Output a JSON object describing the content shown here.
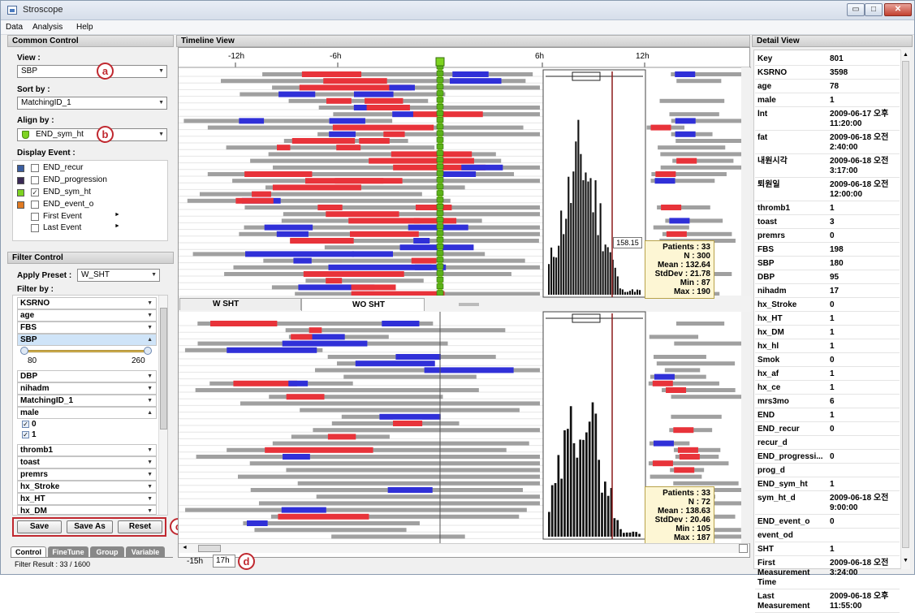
{
  "window": {
    "title": "Stroscope",
    "btn_min": "▭",
    "btn_max": "□",
    "btn_close": "✕"
  },
  "menu": [
    "Data",
    "Analysis",
    "Help"
  ],
  "common_control": {
    "header": "Common Control",
    "view_label": "View :",
    "view_value": "SBP",
    "sort_label": "Sort by :",
    "sort_value": "MatchingID_1",
    "align_label": "Align by :",
    "align_value": "END_sym_ht",
    "display_label": "Display Event :",
    "events": [
      {
        "label": "END_recur",
        "color": "#3b5ea0",
        "checked": false
      },
      {
        "label": "END_progression",
        "color": "#3a2a55",
        "checked": false
      },
      {
        "label": "END_sym_ht",
        "color": "#7ed321",
        "checked": true
      },
      {
        "label": "END_event_o",
        "color": "#e07a22",
        "checked": false
      },
      {
        "label": "First Event",
        "color": "",
        "checked": false,
        "arrow": "►"
      },
      {
        "label": "Last Event",
        "color": "",
        "checked": false,
        "arrow": "►"
      }
    ],
    "callout_a": "a",
    "callout_b": "b",
    "callout_c": "c",
    "callout_d": "d"
  },
  "filter_control": {
    "header": "Filter Control",
    "preset_label": "Apply Preset :",
    "preset_value": "W_SHT",
    "filter_label": "Filter by :",
    "rows_top": [
      "KSRNO",
      "age",
      "FBS",
      "SBP"
    ],
    "sbp_range": {
      "min_label": "80",
      "max_label": "260"
    },
    "rows_mid": [
      "DBP",
      "nihadm",
      "MatchingID_1",
      "male"
    ],
    "male_options": [
      "0",
      "1"
    ],
    "rows_bottom": [
      "thromb1",
      "toast",
      "premrs",
      "hx_Stroke",
      "hx_HT",
      "hx_DM"
    ],
    "buttons": {
      "save": "Save",
      "save_as": "Save As",
      "reset": "Reset"
    },
    "tabs": [
      "Control",
      "FineTune",
      "Group",
      "Variable"
    ],
    "result": "Filter Result : 33 / 1600"
  },
  "timeline": {
    "header": "Timeline View",
    "ticks": [
      "-12h",
      "-6h",
      "6h",
      "12h"
    ],
    "tabs": [
      "W SHT",
      "WO SHT"
    ],
    "cursor_value": "158.15",
    "range_start": "-15h",
    "range_end": "17h",
    "stats_top": {
      "patients": "Patients : 33",
      "n": "N : 300",
      "mean": "Mean : 132.64",
      "std": "StdDev : 21.78",
      "min": "Min : 87",
      "max": "Max : 190"
    },
    "stats_bottom": {
      "patients": "Patients : 33",
      "n": "N : 72",
      "mean": "Mean : 138.63",
      "std": "StdDev : 20.46",
      "min": "Min : 105",
      "max": "Max : 187"
    },
    "colors": {
      "high": "#e8333a",
      "low": "#3030d8",
      "mid": "#a0a0a0",
      "align": "#7ed321",
      "marker": "#8b1a1a"
    }
  },
  "detail": {
    "header": "Detail View",
    "rows": [
      [
        "Key",
        "801"
      ],
      [
        "KSRNO",
        "3598"
      ],
      [
        "age",
        "78"
      ],
      [
        "male",
        "1"
      ],
      [
        "lnt",
        "2009-06-17 오후\n11:20:00"
      ],
      [
        "fat",
        "2009-06-18 오전\n2:40:00"
      ],
      [
        "내원시각",
        "2009-06-18 오전\n3:17:00"
      ],
      [
        "퇴원일",
        "2009-06-18 오전\n12:00:00"
      ],
      [
        "thromb1",
        "1"
      ],
      [
        "toast",
        "3"
      ],
      [
        "premrs",
        "0"
      ],
      [
        "FBS",
        "198"
      ],
      [
        "SBP",
        "180"
      ],
      [
        "DBP",
        "95"
      ],
      [
        "nihadm",
        "17"
      ],
      [
        "hx_Stroke",
        "0"
      ],
      [
        "hx_HT",
        "1"
      ],
      [
        "hx_DM",
        "1"
      ],
      [
        "hx_hl",
        "1"
      ],
      [
        "Smok",
        "0"
      ],
      [
        "hx_af",
        "1"
      ],
      [
        "hx_ce",
        "1"
      ],
      [
        "mrs3mo",
        "6"
      ],
      [
        "END",
        "1"
      ],
      [
        "END_recur",
        "0"
      ],
      [
        "recur_d",
        ""
      ],
      [
        "END_progressi...",
        "0"
      ],
      [
        "prog_d",
        ""
      ],
      [
        "END_sym_ht",
        "1"
      ],
      [
        "sym_ht_d",
        "2009-06-18 오전\n9:00:00"
      ],
      [
        "END_event_o",
        "0"
      ],
      [
        "event_od",
        ""
      ],
      [
        "SHT",
        "1"
      ],
      [
        "First\nMeasurement\nTime",
        "2009-06-18 오전\n3:24:00"
      ],
      [
        "Last\nMeasurement",
        "2009-06-18 오후\n11:55:00"
      ]
    ]
  }
}
